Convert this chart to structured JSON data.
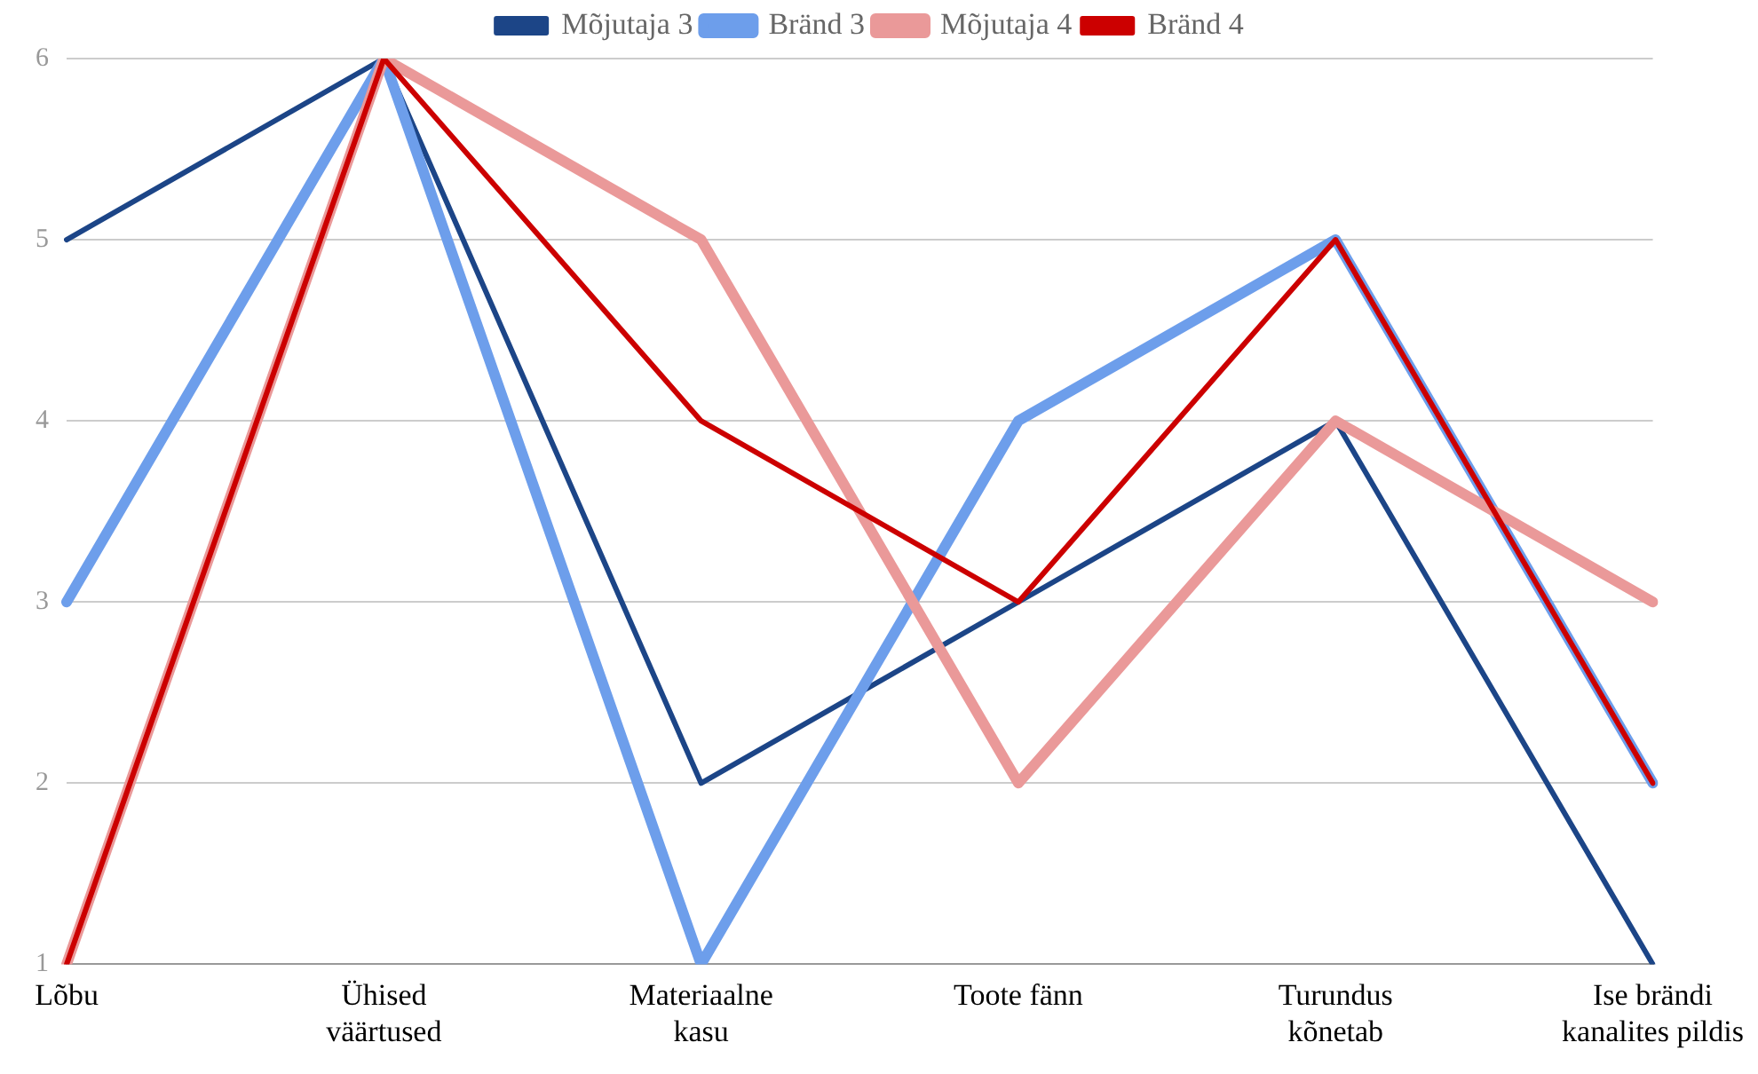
{
  "chart_data": {
    "type": "line",
    "categories": [
      "Lõbu",
      "Ühised väärtused",
      "Materiaalne kasu",
      "Toote fänn",
      "Turundus kõnetab",
      "Ise brändi kanalites pildis"
    ],
    "series": [
      {
        "name": "Mõjutaja 3",
        "color": "#1c4587",
        "values": [
          5,
          6,
          2,
          3,
          4,
          1
        ]
      },
      {
        "name": "Bränd 3",
        "color": "#6d9eeb",
        "values": [
          3,
          6,
          1,
          4,
          5,
          2
        ]
      },
      {
        "name": "Mõjutaja 4",
        "color": "#ea9999",
        "values": [
          1,
          6,
          5,
          2,
          4,
          3
        ]
      },
      {
        "name": "Bränd 4",
        "color": "#cc0000",
        "values": [
          1,
          6,
          4,
          3,
          5,
          2
        ]
      }
    ],
    "ylim": [
      1,
      6
    ],
    "yticks": [
      1,
      2,
      3,
      4,
      5,
      6
    ],
    "grid": "y",
    "legend": "top",
    "marker": "none",
    "line_style": "solid"
  }
}
